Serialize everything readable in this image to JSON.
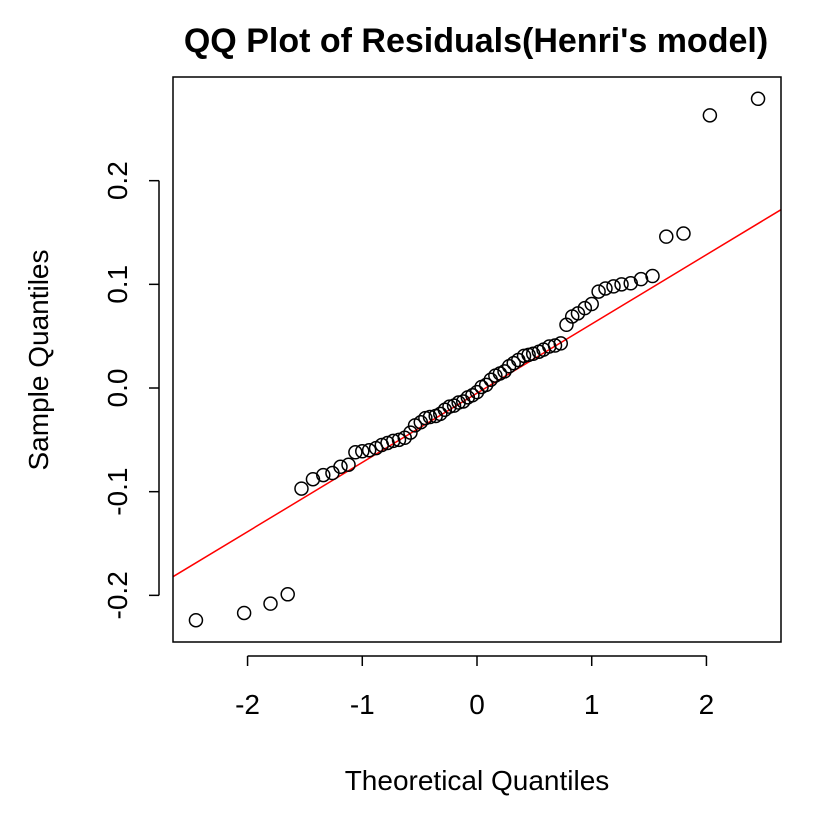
{
  "chart_data": {
    "type": "scatter",
    "title": "QQ Plot of Residuals(Henri's model)",
    "xlabel": "Theoretical Quantiles",
    "ylabel": "Sample Quantiles",
    "xlim": [
      -2.65,
      2.65
    ],
    "ylim": [
      -0.245,
      0.3
    ],
    "xticks": [
      -2,
      -1,
      0,
      1,
      2
    ],
    "xtick_labels": [
      "-2",
      "-1",
      "0",
      "1",
      "2"
    ],
    "yticks": [
      -0.2,
      -0.1,
      0.0,
      0.1,
      0.2
    ],
    "ytick_labels": [
      "-0.2",
      "-0.1",
      "0.0",
      "0.1",
      "0.2"
    ],
    "grid": false,
    "point_color": "#000000",
    "reference_line": {
      "color": "#ff0000",
      "x1": -2.65,
      "y1": -0.182,
      "x2": 2.65,
      "y2": 0.172
    },
    "points": {
      "x": [
        -2.45,
        -2.03,
        -1.8,
        -1.65,
        -1.53,
        -1.43,
        -1.34,
        -1.26,
        -1.19,
        -1.12,
        -1.06,
        -1.0,
        -0.94,
        -0.88,
        -0.83,
        -0.78,
        -0.73,
        -0.68,
        -0.63,
        -0.58,
        -0.54,
        -0.49,
        -0.45,
        -0.41,
        -0.36,
        -0.32,
        -0.28,
        -0.24,
        -0.2,
        -0.16,
        -0.12,
        -0.08,
        -0.04,
        0.0,
        0.04,
        0.08,
        0.12,
        0.16,
        0.2,
        0.24,
        0.28,
        0.32,
        0.36,
        0.41,
        0.45,
        0.49,
        0.54,
        0.58,
        0.63,
        0.68,
        0.73,
        0.78,
        0.83,
        0.88,
        0.94,
        1.0,
        1.06,
        1.12,
        1.19,
        1.26,
        1.34,
        1.43,
        1.53,
        1.65,
        1.8,
        2.03,
        2.45
      ],
      "y": [
        -0.224,
        -0.217,
        -0.208,
        -0.199,
        -0.097,
        -0.088,
        -0.084,
        -0.082,
        -0.076,
        -0.074,
        -0.062,
        -0.061,
        -0.06,
        -0.058,
        -0.055,
        -0.053,
        -0.051,
        -0.05,
        -0.048,
        -0.043,
        -0.036,
        -0.033,
        -0.029,
        -0.028,
        -0.027,
        -0.025,
        -0.021,
        -0.018,
        -0.017,
        -0.014,
        -0.013,
        -0.009,
        -0.007,
        -0.004,
        0.001,
        0.003,
        0.008,
        0.012,
        0.014,
        0.016,
        0.021,
        0.024,
        0.027,
        0.031,
        0.032,
        0.033,
        0.035,
        0.037,
        0.04,
        0.041,
        0.043,
        0.061,
        0.069,
        0.072,
        0.077,
        0.081,
        0.093,
        0.096,
        0.098,
        0.1,
        0.101,
        0.105,
        0.108,
        0.146,
        0.149,
        0.263,
        0.279
      ]
    }
  }
}
